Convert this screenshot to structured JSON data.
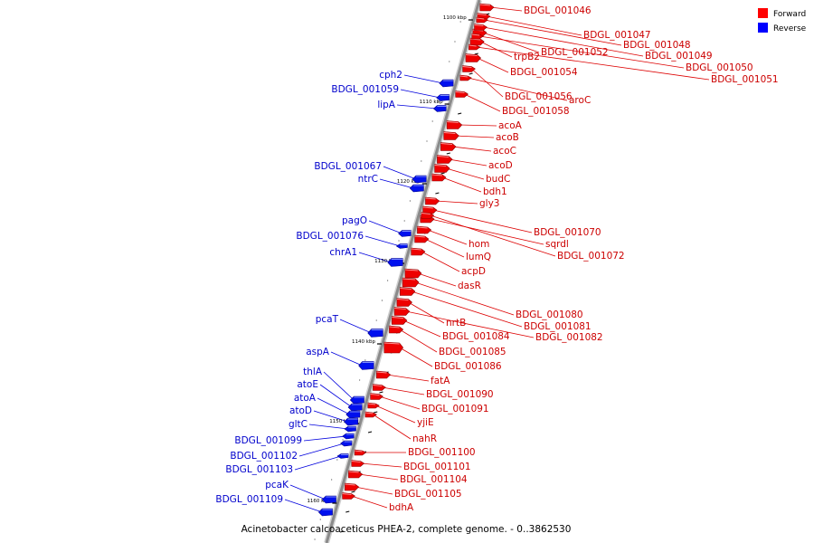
{
  "caption": "Acinetobacter calcoaceticus PHEA-2, complete genome. - 0..3862530",
  "legend": [
    {
      "label": "Forward",
      "color": "#ff0000"
    },
    {
      "label": "Reverse",
      "color": "#0000ff"
    }
  ],
  "scale_ticks": [
    "1100 kbp",
    "1110 kbp",
    "1120 kbp",
    "1130 kbp",
    "1140 kbp",
    "1150 kbp",
    "1160 kbp"
  ],
  "forward_genes": [
    "BDGL_001046",
    "BDGL_001047",
    "BDGL_001048",
    "BDGL_001052",
    "BDGL_001049",
    "trpB2",
    "BDGL_001050",
    "BDGL_001051",
    "BDGL_001054",
    "BDGL_001056",
    "aroC",
    "BDGL_001058",
    "acoA",
    "acoB",
    "acoC",
    "acoD",
    "budC",
    "bdh1",
    "gly3",
    "BDGL_001070",
    "sqrdl",
    "hom",
    "lumQ",
    "BDGL_001072",
    "acpD",
    "dasR",
    "BDGL_001080",
    "BDGL_001081",
    "nrtB",
    "BDGL_001082",
    "BDGL_001084",
    "BDGL_001085",
    "BDGL_001086",
    "fatA",
    "BDGL_001090",
    "BDGL_001091",
    "yjiE",
    "nahR",
    "BDGL_001100",
    "BDGL_001101",
    "BDGL_001104",
    "BDGL_001105",
    "bdhA"
  ],
  "reverse_genes": [
    "cph2",
    "BDGL_001059",
    "lipA",
    "BDGL_001067",
    "ntrC",
    "pagO",
    "BDGL_001076",
    "chrA1",
    "pcaT",
    "aspA",
    "thlA",
    "atoE",
    "atoA",
    "atoD",
    "gltC",
    "BDGL_001099",
    "BDGL_001102",
    "BDGL_001103",
    "pcaK",
    "BDGL_001109"
  ]
}
